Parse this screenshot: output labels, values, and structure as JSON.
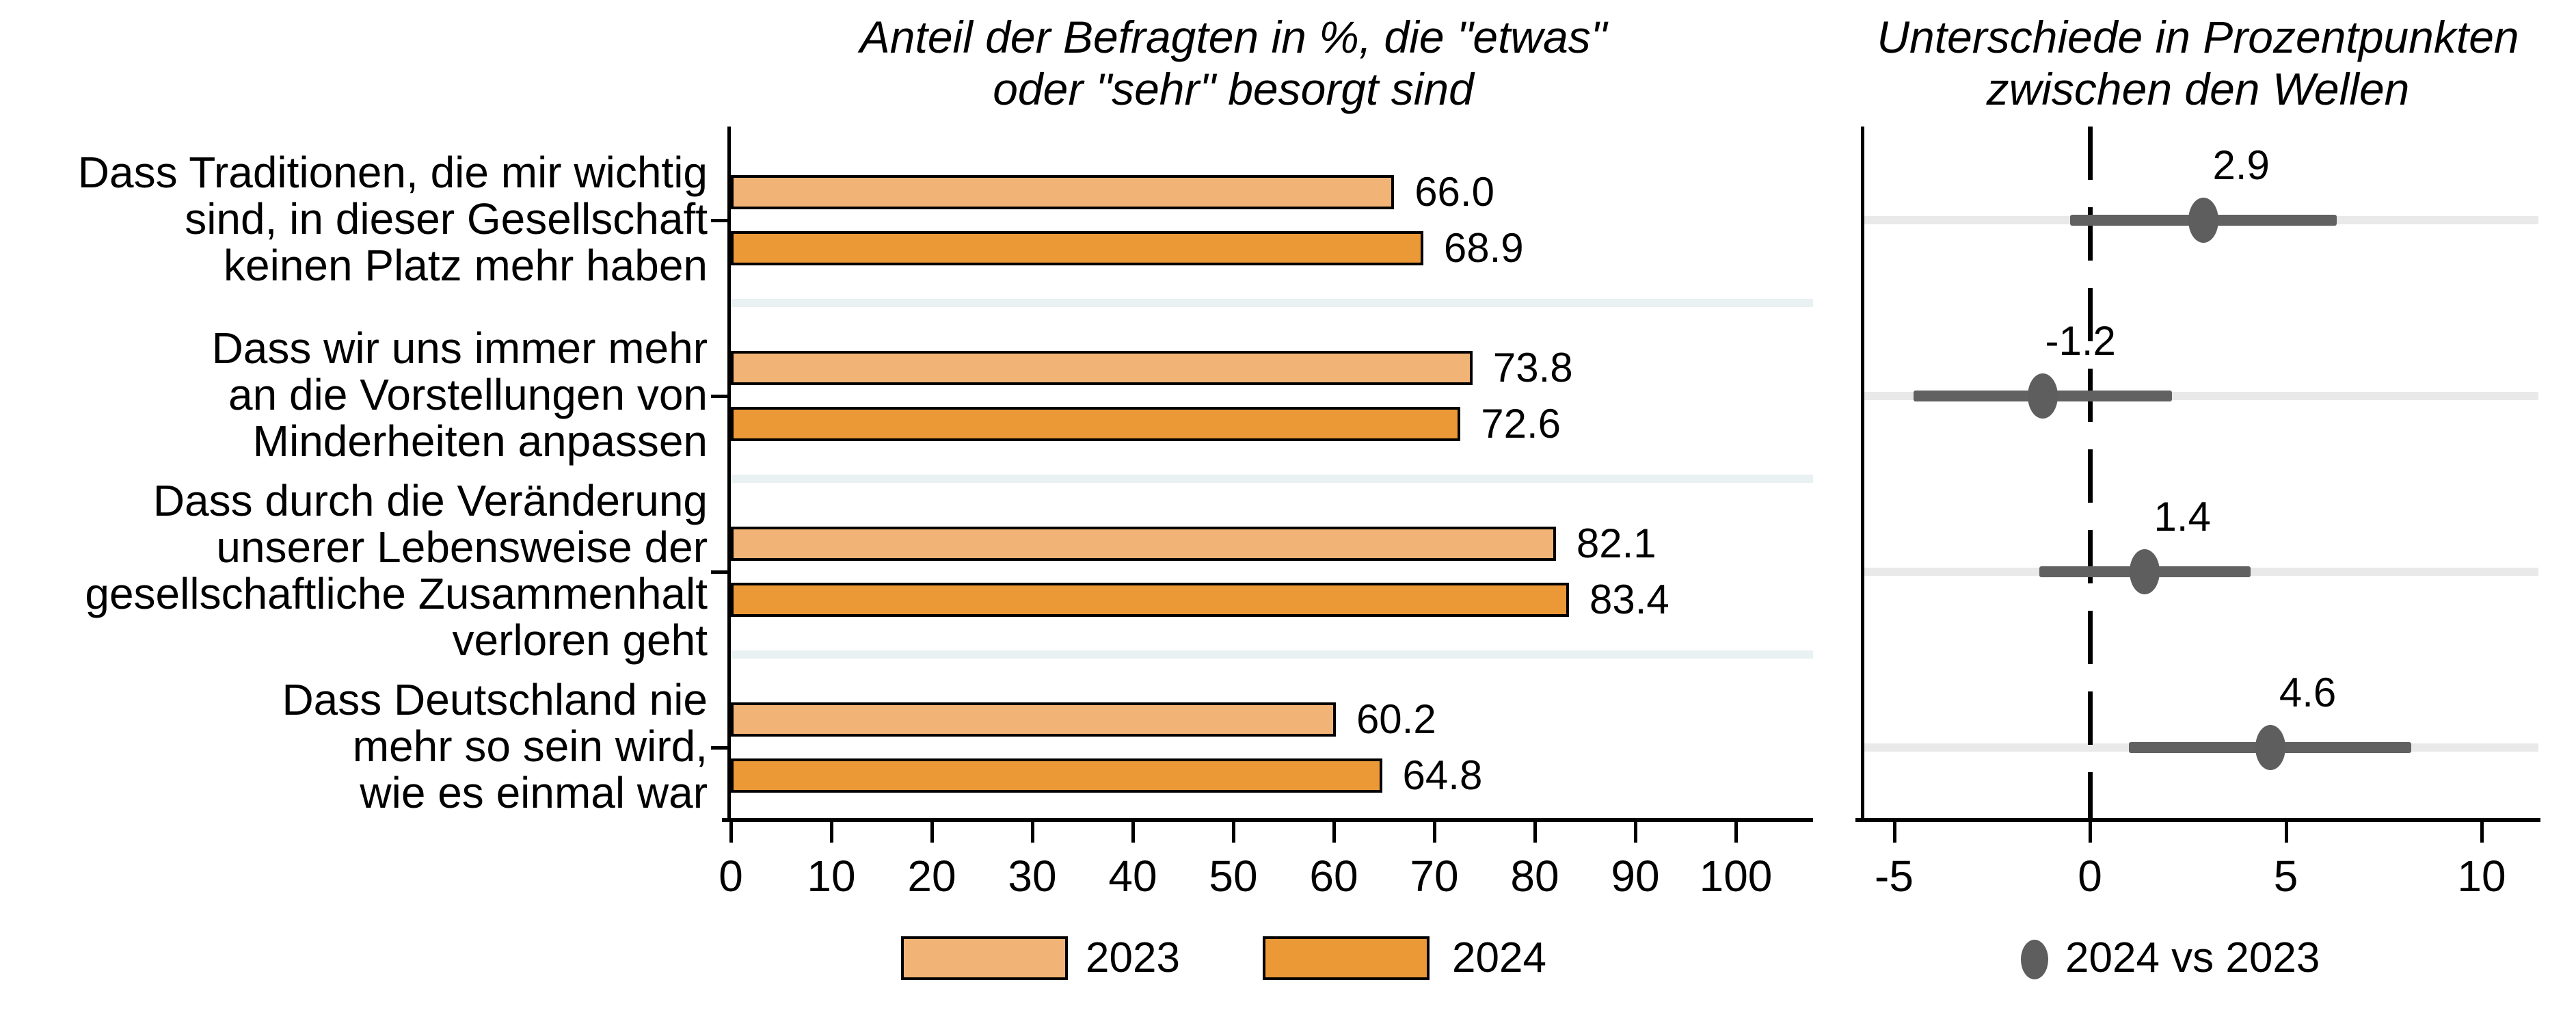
{
  "chart_data": [
    {
      "type": "bar",
      "orientation": "horizontal",
      "title_lines": [
        "Anteil der Befragten in %, die \"etwas\"",
        "oder \"sehr\" besorgt sind"
      ],
      "categories": [
        "Dass Traditionen, die mir wichtig\nsind, in dieser Gesellschaft\nkeinen Platz mehr haben",
        "Dass wir uns immer mehr\nan die Vorstellungen von\nMinderheiten anpassen",
        "Dass durch die Veränderung\nunserer Lebensweise der\ngesellschaftliche Zusammenhalt\nverloren geht",
        "Dass Deutschland nie\nmehr so sein wird,\nwie es einmal war"
      ],
      "series": [
        {
          "name": "2023",
          "color": "#F2B476",
          "values": [
            66.0,
            73.8,
            82.1,
            60.2
          ],
          "value_labels": [
            "66.0",
            "73.8",
            "82.1",
            "60.2"
          ]
        },
        {
          "name": "2024",
          "color": "#EB9837",
          "values": [
            68.9,
            72.6,
            83.4,
            64.8
          ],
          "value_labels": [
            "68.9",
            "72.6",
            "83.4",
            "64.8"
          ]
        }
      ],
      "xlim": [
        0,
        100
      ],
      "xticks": [
        0,
        10,
        20,
        30,
        40,
        50,
        60,
        70,
        80,
        90,
        100
      ],
      "bar_outline_color": "#000000",
      "group_separator_color": "#E9F1F2",
      "legend": [
        {
          "label": "2023",
          "color": "#F2B476"
        },
        {
          "label": "2024",
          "color": "#EB9837"
        }
      ]
    },
    {
      "type": "scatter",
      "subtype": "dot-with-ci",
      "title_lines": [
        "Unterschiede in Prozentpunkten",
        "zwischen den Wellen"
      ],
      "points": [
        {
          "value": 2.9,
          "label": "2.9",
          "ci": [
            -0.5,
            6.3
          ]
        },
        {
          "value": -1.2,
          "label": "-1.2",
          "ci": [
            -4.5,
            2.1
          ]
        },
        {
          "value": 1.4,
          "label": "1.4",
          "ci": [
            -1.3,
            4.1
          ]
        },
        {
          "value": 4.6,
          "label": "4.6",
          "ci": [
            1.0,
            8.2
          ]
        }
      ],
      "xlim": [
        -6,
        11.5
      ],
      "xticks": [
        -5,
        0,
        5,
        10
      ],
      "zero_line": 0,
      "marker_color": "#5E5E5E",
      "ci_color": "#616161",
      "gridline_color": "#E9E9E9",
      "legend": {
        "marker_color": "#5E5E5E",
        "label": "2024 vs 2023"
      }
    }
  ]
}
